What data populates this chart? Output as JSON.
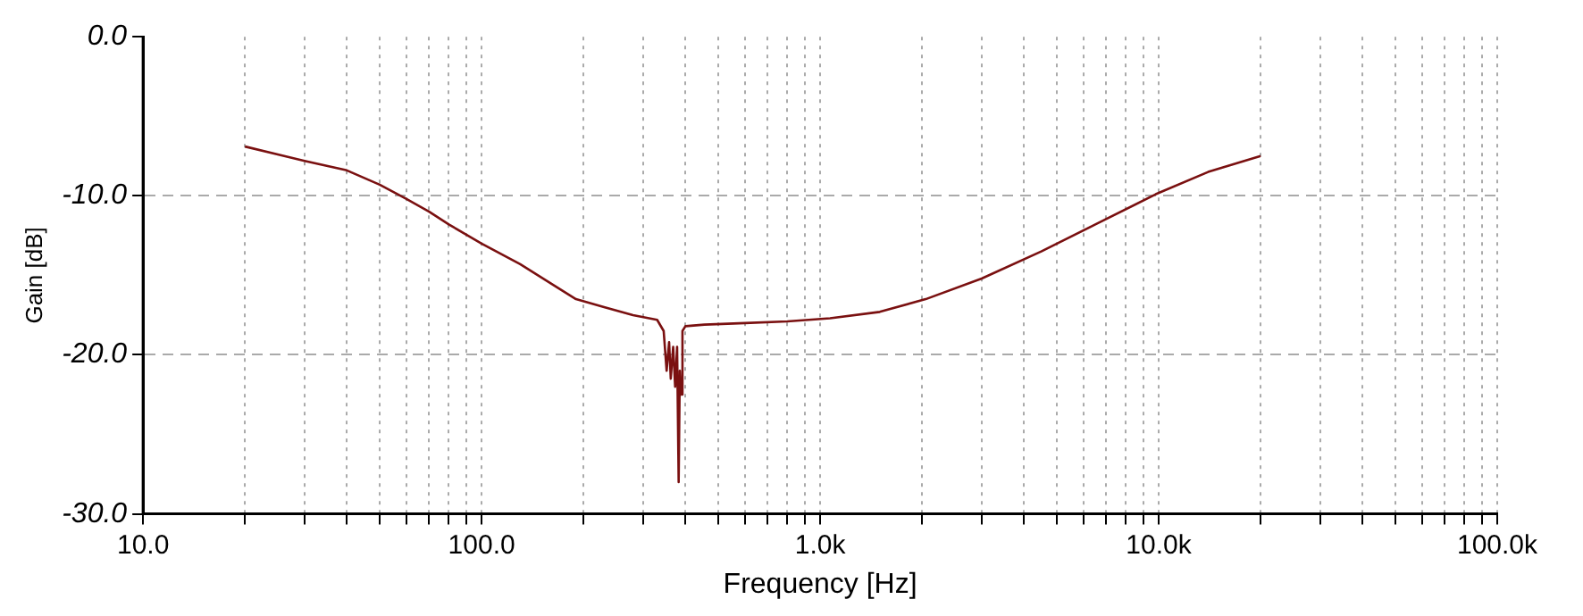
{
  "chart_data": {
    "type": "line",
    "xlabel": "Frequency [Hz]",
    "ylabel": "Gain [dB]",
    "log": "x",
    "grid": true,
    "marker": "none",
    "line_style": "solid",
    "xlim": [
      10,
      100000
    ],
    "ylim": [
      -30,
      0
    ],
    "xticks": [
      {
        "value": 10,
        "label": "10.0"
      },
      {
        "value": 20,
        "label": null
      },
      {
        "value": 30,
        "label": null
      },
      {
        "value": 40,
        "label": null
      },
      {
        "value": 50,
        "label": null
      },
      {
        "value": 60,
        "label": null
      },
      {
        "value": 70,
        "label": null
      },
      {
        "value": 80,
        "label": null
      },
      {
        "value": 90,
        "label": null
      },
      {
        "value": 100,
        "label": "100.0"
      },
      {
        "value": 200,
        "label": null
      },
      {
        "value": 300,
        "label": null
      },
      {
        "value": 400,
        "label": null
      },
      {
        "value": 500,
        "label": null
      },
      {
        "value": 600,
        "label": null
      },
      {
        "value": 700,
        "label": null
      },
      {
        "value": 800,
        "label": null
      },
      {
        "value": 900,
        "label": null
      },
      {
        "value": 1000,
        "label": "1.0k"
      },
      {
        "value": 2000,
        "label": null
      },
      {
        "value": 3000,
        "label": null
      },
      {
        "value": 4000,
        "label": null
      },
      {
        "value": 5000,
        "label": null
      },
      {
        "value": 6000,
        "label": null
      },
      {
        "value": 7000,
        "label": null
      },
      {
        "value": 8000,
        "label": null
      },
      {
        "value": 9000,
        "label": null
      },
      {
        "value": 10000,
        "label": "10.0k"
      },
      {
        "value": 20000,
        "label": null
      },
      {
        "value": 30000,
        "label": null
      },
      {
        "value": 40000,
        "label": null
      },
      {
        "value": 50000,
        "label": null
      },
      {
        "value": 60000,
        "label": null
      },
      {
        "value": 70000,
        "label": null
      },
      {
        "value": 80000,
        "label": null
      },
      {
        "value": 90000,
        "label": null
      },
      {
        "value": 100000,
        "label": "100.0k"
      }
    ],
    "yticks": [
      {
        "value": -30,
        "label": "-30.0"
      },
      {
        "value": -20,
        "label": "-20.0"
      },
      {
        "value": -10,
        "label": "-10.0"
      },
      {
        "value": 0,
        "label": "0.0"
      }
    ],
    "series": [
      {
        "color": "#7a1010",
        "x": [
          20,
          25,
          30,
          40,
          50,
          60,
          70,
          80,
          100,
          130,
          160,
          190,
          230,
          280,
          330,
          345,
          352,
          358,
          362,
          368,
          373,
          378,
          382,
          385,
          388,
          392,
          400,
          455,
          600,
          800,
          1070,
          1500,
          2050,
          3000,
          4500,
          6500,
          9800,
          14000,
          20000
        ],
        "values": [
          -6.9,
          -7.4,
          -7.8,
          -8.4,
          -9.3,
          -10.2,
          -11,
          -11.8,
          -13,
          -14.3,
          -15.5,
          -16.5,
          -17,
          -17.5,
          -17.8,
          -18.5,
          -21,
          -19.2,
          -21.5,
          -19.5,
          -22,
          -19.5,
          -28,
          -21,
          -22.5,
          -18.5,
          -18.2,
          -18.1,
          -18,
          -17.9,
          -17.7,
          -17.3,
          -16.5,
          -15.2,
          -13.5,
          -11.8,
          -9.9,
          -8.5,
          -7.5
        ]
      }
    ]
  }
}
